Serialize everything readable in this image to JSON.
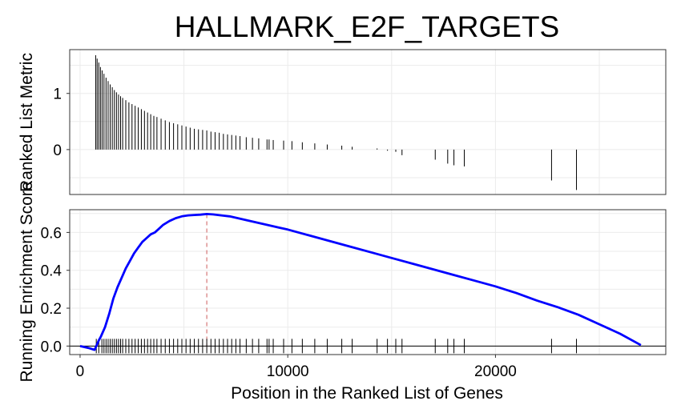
{
  "chart_data": {
    "type": "line",
    "title": "HALLMARK_E2F_TARGETS",
    "xlabel": "Position in the Ranked List of Genes",
    "x_ticks": [
      0,
      10000,
      20000
    ],
    "xlim": [
      -500,
      28200
    ],
    "grid": true,
    "panels": [
      {
        "name": "ranked_list",
        "ylabel": "Ranked List Metric",
        "y_ticks": [
          0,
          1
        ],
        "ylim": [
          -0.8,
          1.78
        ],
        "bars": [
          {
            "x": 750,
            "y": 1.68
          },
          {
            "x": 820,
            "y": 1.62
          },
          {
            "x": 900,
            "y": 1.55
          },
          {
            "x": 980,
            "y": 1.47
          },
          {
            "x": 1060,
            "y": 1.41
          },
          {
            "x": 1150,
            "y": 1.35
          },
          {
            "x": 1250,
            "y": 1.28
          },
          {
            "x": 1350,
            "y": 1.22
          },
          {
            "x": 1450,
            "y": 1.16
          },
          {
            "x": 1550,
            "y": 1.11
          },
          {
            "x": 1650,
            "y": 1.06
          },
          {
            "x": 1750,
            "y": 1.02
          },
          {
            "x": 1850,
            "y": 0.98
          },
          {
            "x": 1950,
            "y": 0.95
          },
          {
            "x": 2050,
            "y": 0.92
          },
          {
            "x": 2200,
            "y": 0.88
          },
          {
            "x": 2350,
            "y": 0.84
          },
          {
            "x": 2500,
            "y": 0.81
          },
          {
            "x": 2650,
            "y": 0.78
          },
          {
            "x": 2800,
            "y": 0.75
          },
          {
            "x": 2950,
            "y": 0.72
          },
          {
            "x": 3100,
            "y": 0.69
          },
          {
            "x": 3250,
            "y": 0.66
          },
          {
            "x": 3400,
            "y": 0.63
          },
          {
            "x": 3550,
            "y": 0.6
          },
          {
            "x": 3700,
            "y": 0.58
          },
          {
            "x": 3900,
            "y": 0.55
          },
          {
            "x": 4100,
            "y": 0.52
          },
          {
            "x": 4300,
            "y": 0.49
          },
          {
            "x": 4500,
            "y": 0.47
          },
          {
            "x": 4700,
            "y": 0.45
          },
          {
            "x": 4900,
            "y": 0.43
          },
          {
            "x": 5100,
            "y": 0.41
          },
          {
            "x": 5300,
            "y": 0.39
          },
          {
            "x": 5500,
            "y": 0.37
          },
          {
            "x": 5700,
            "y": 0.36
          },
          {
            "x": 5900,
            "y": 0.35
          },
          {
            "x": 6100,
            "y": 0.34
          },
          {
            "x": 6300,
            "y": 0.32
          },
          {
            "x": 6500,
            "y": 0.31
          },
          {
            "x": 6700,
            "y": 0.3
          },
          {
            "x": 6900,
            "y": 0.28
          },
          {
            "x": 7100,
            "y": 0.27
          },
          {
            "x": 7300,
            "y": 0.26
          },
          {
            "x": 7500,
            "y": 0.25
          },
          {
            "x": 7700,
            "y": 0.24
          },
          {
            "x": 8000,
            "y": 0.22
          },
          {
            "x": 8300,
            "y": 0.21
          },
          {
            "x": 8600,
            "y": 0.2
          },
          {
            "x": 9000,
            "y": 0.18
          },
          {
            "x": 9100,
            "y": 0.18
          },
          {
            "x": 9300,
            "y": 0.17
          },
          {
            "x": 9800,
            "y": 0.16
          },
          {
            "x": 10200,
            "y": 0.15
          },
          {
            "x": 10700,
            "y": 0.13
          },
          {
            "x": 11300,
            "y": 0.11
          },
          {
            "x": 11900,
            "y": 0.09
          },
          {
            "x": 12600,
            "y": 0.07
          },
          {
            "x": 13100,
            "y": 0.05
          },
          {
            "x": 14300,
            "y": 0.02
          },
          {
            "x": 14800,
            "y": -0.02
          },
          {
            "x": 15200,
            "y": -0.04
          },
          {
            "x": 15500,
            "y": -0.1
          },
          {
            "x": 17100,
            "y": -0.18
          },
          {
            "x": 17700,
            "y": -0.25
          },
          {
            "x": 18000,
            "y": -0.28
          },
          {
            "x": 18500,
            "y": -0.3
          },
          {
            "x": 22700,
            "y": -0.55
          },
          {
            "x": 23900,
            "y": -0.72
          }
        ]
      },
      {
        "name": "running_es",
        "ylabel": "Running Enrichment Score",
        "y_ticks": [
          0.0,
          0.2,
          0.4,
          0.6
        ],
        "y_tick_labels": [
          "0.0",
          "0.2",
          "0.4",
          "0.6"
        ],
        "ylim": [
          -0.045,
          0.72
        ],
        "series": [
          {
            "color": "#0000ff",
            "x": [
              0,
              400,
              700,
              900,
              1000,
              1200,
              1400,
              1600,
              1800,
              2000,
              2200,
              2400,
              2600,
              2800,
              3000,
              3200,
              3400,
              3600,
              3800,
              4000,
              4300,
              4600,
              4900,
              5200,
              5500,
              5800,
              6100,
              6400,
              6800,
              7200,
              7600,
              8000,
              8400,
              8800,
              9200,
              9600,
              10000,
              11000,
              12000,
              13000,
              14000,
              15000,
              16000,
              17000,
              18000,
              19000,
              20000,
              21000,
              22000,
              23000,
              24000,
              25000,
              26000,
              27000
            ],
            "y": [
              0.0,
              -0.01,
              -0.02,
              0.03,
              0.05,
              0.1,
              0.17,
              0.25,
              0.31,
              0.36,
              0.41,
              0.45,
              0.49,
              0.52,
              0.55,
              0.57,
              0.59,
              0.6,
              0.62,
              0.64,
              0.66,
              0.675,
              0.685,
              0.69,
              0.692,
              0.694,
              0.697,
              0.695,
              0.69,
              0.685,
              0.675,
              0.665,
              0.655,
              0.645,
              0.635,
              0.625,
              0.615,
              0.585,
              0.555,
              0.525,
              0.495,
              0.465,
              0.435,
              0.405,
              0.375,
              0.345,
              0.315,
              0.28,
              0.24,
              0.205,
              0.165,
              0.115,
              0.065,
              0.005
            ]
          }
        ],
        "hline": 0,
        "max_marker": {
          "x": 6100,
          "color": "#cd5c5c"
        },
        "hit_ticks": [
          780,
          900,
          1050,
          1150,
          1250,
          1350,
          1450,
          1550,
          1650,
          1750,
          1850,
          1950,
          2050,
          2200,
          2350,
          2500,
          2650,
          2800,
          2950,
          3100,
          3250,
          3400,
          3550,
          3700,
          3900,
          4100,
          4300,
          4500,
          4700,
          4900,
          5100,
          5300,
          5500,
          5700,
          5900,
          6100,
          6300,
          6500,
          6700,
          6900,
          7100,
          7300,
          7500,
          7700,
          8000,
          8300,
          8600,
          9000,
          9100,
          9300,
          9800,
          10200,
          10700,
          11300,
          11900,
          12600,
          13100,
          14300,
          14800,
          15200,
          15500,
          17100,
          17700,
          18000,
          18500,
          22700,
          23900
        ]
      }
    ]
  }
}
